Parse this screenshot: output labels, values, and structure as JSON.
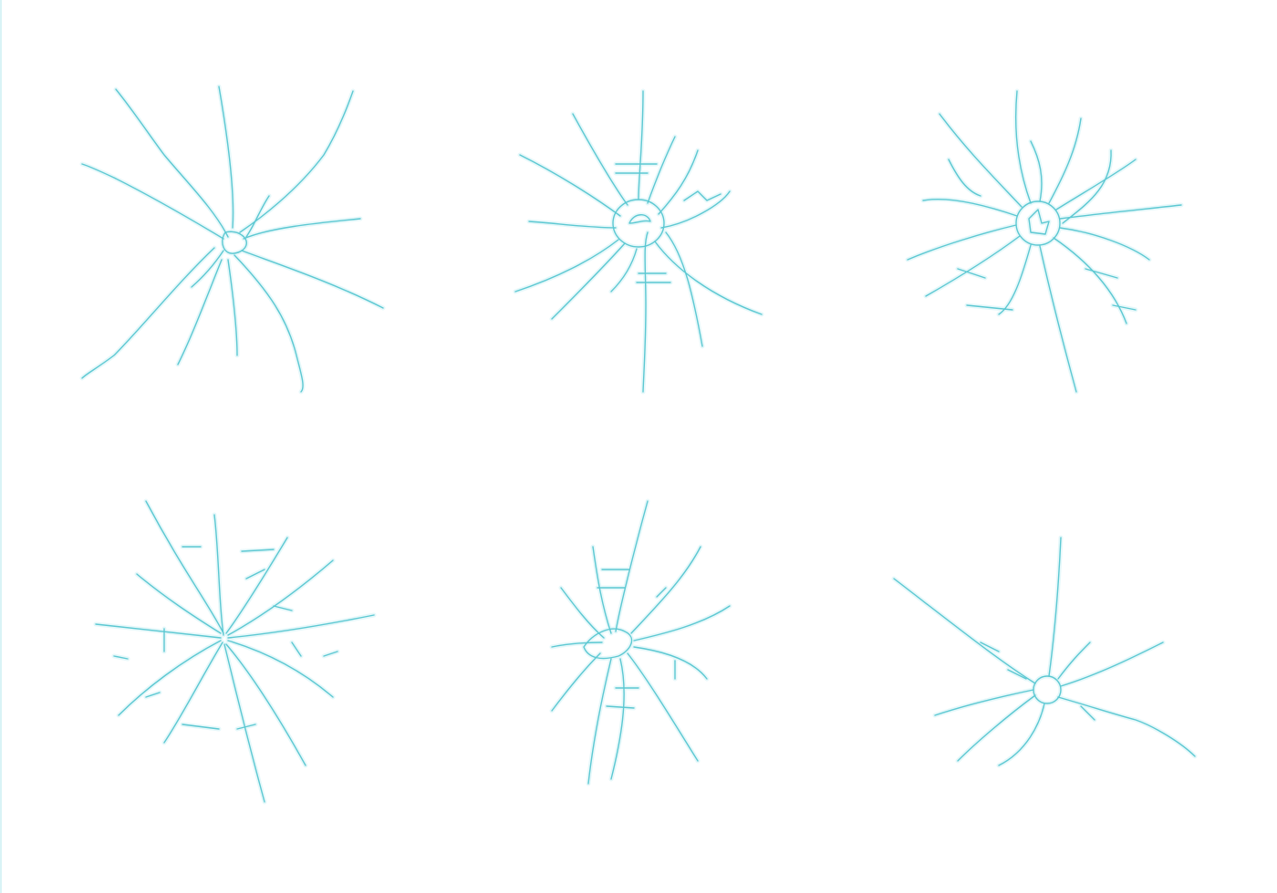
{
  "colors": {
    "background": "#ffffff",
    "crack_stroke": "#5cc8d2",
    "crack_highlight": "#e6f8fa"
  },
  "items": [
    {
      "icon": "broken-glass-crack-icon"
    },
    {
      "icon": "broken-glass-crack-icon"
    },
    {
      "icon": "broken-glass-crack-icon"
    },
    {
      "icon": "broken-glass-crack-icon"
    },
    {
      "icon": "broken-glass-crack-icon"
    },
    {
      "icon": "broken-glass-crack-icon"
    }
  ]
}
